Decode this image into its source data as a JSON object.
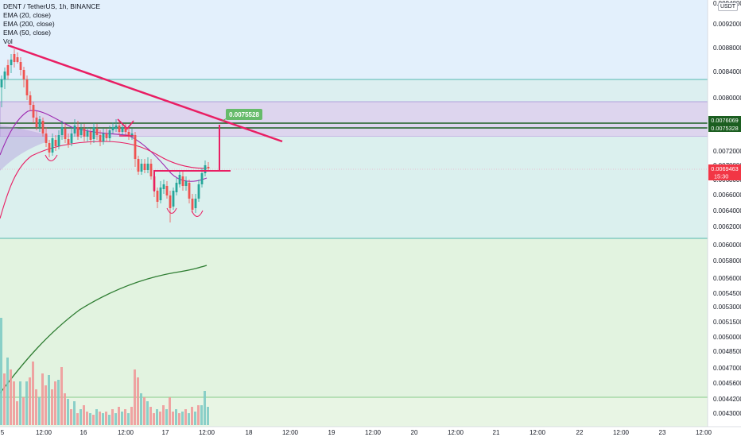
{
  "symbol_line": "DENT / TetherUS, 1h, BINANCE",
  "indicators": [
    "EMA (20, close)",
    "EMA (200, close)",
    "EMA (50, close)",
    "Vol"
  ],
  "currency": "USDT",
  "price_scale": {
    "labels": [
      "0.0094000",
      "0.0092000",
      "0.0088000",
      "0.0084000",
      "0.0080000",
      "0.0072000",
      "0.0070000",
      "0.0068000",
      "0.0066000",
      "0.0064000",
      "0.0062000",
      "0.0060000",
      "0.0058000",
      "0.0056000",
      "0.0054500",
      "0.0053000",
      "0.0051500",
      "0.0050000",
      "0.0048500",
      "0.0047000",
      "0.0045600",
      "0.0044200",
      "0.0043000"
    ]
  },
  "price_badges": [
    {
      "text": "0.0076069",
      "color": "#1b5e20"
    },
    {
      "text": "0.0075328",
      "color": "#1b5e20"
    },
    {
      "text": "0.0069463",
      "color": "#f23645"
    },
    {
      "text": "15:30",
      "color": "#f23645"
    }
  ],
  "target_label": "0.0075528",
  "time_axis": [
    "5",
    "12:00",
    "16",
    "12:00",
    "17",
    "12:00",
    "18",
    "12:00",
    "19",
    "12:00",
    "20",
    "12:00",
    "21",
    "12:00",
    "22",
    "12:00",
    "23",
    "12:00"
  ],
  "colors": {
    "up": "#26a69a",
    "down": "#ef5350",
    "trendline": "#e91e63",
    "ema20": "#9c27b0",
    "ema50": "#e91e63",
    "ema200": "#2e7d32"
  }
}
